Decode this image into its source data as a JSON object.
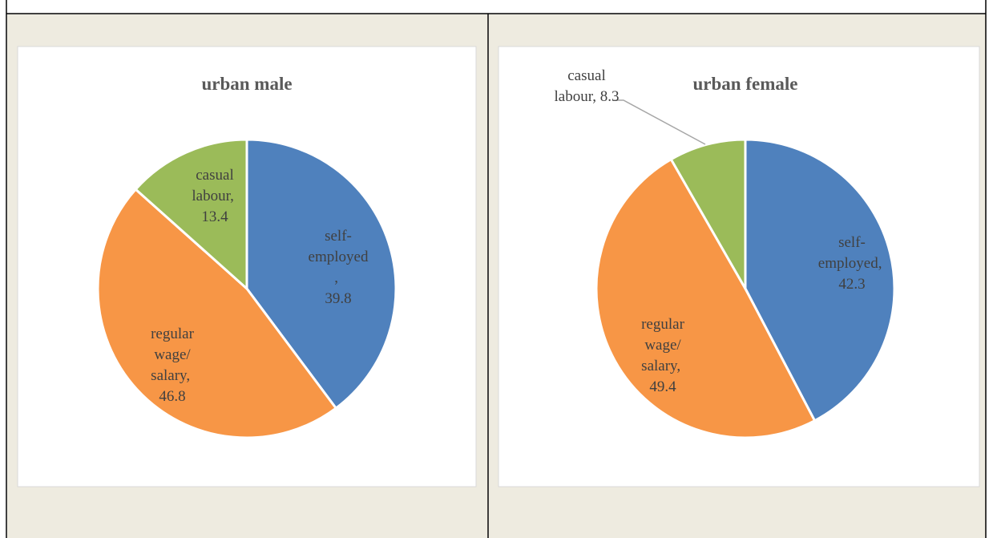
{
  "chart_data": [
    {
      "type": "pie",
      "title": "urban male",
      "categories": [
        "self-employed",
        "regular wage/ salary",
        "casual labour"
      ],
      "values": [
        39.8,
        46.8,
        13.4
      ],
      "label_separator": ", ",
      "colors": [
        "#4f81bd",
        "#f79646",
        "#9bbb59"
      ]
    },
    {
      "type": "pie",
      "title": "urban female",
      "categories": [
        "self-employed",
        "regular wage/ salary",
        "casual labour"
      ],
      "values": [
        42.3,
        49.4,
        8.3
      ],
      "label_separator": ", ",
      "colors": [
        "#4f81bd",
        "#f79646",
        "#9bbb59"
      ]
    }
  ]
}
